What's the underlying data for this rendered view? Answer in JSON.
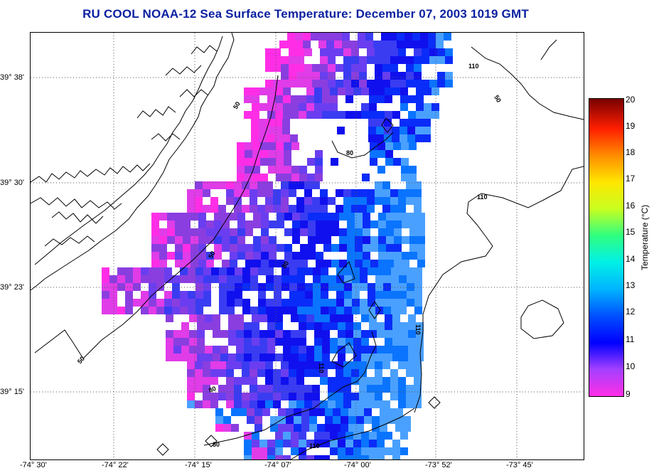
{
  "title": "RU COOL  NOAA-12  Sea Surface Temperature:  December 07, 2003 1019 GMT",
  "latitude_labels": [
    "39° 38'",
    "39° 30'",
    "39° 23'",
    "39° 15'"
  ],
  "longitude_labels": [
    "-74° 30'",
    "-74° 22'",
    "-74° 15'",
    "-74° 07'",
    "-74° 00'",
    "-73° 52'",
    "-73° 45'"
  ],
  "colorbar": {
    "label": "Temperature (°C)",
    "ticks": [
      "20",
      "19",
      "18",
      "17",
      "16",
      "15",
      "14",
      "13",
      "12",
      "11",
      "10",
      "9"
    ]
  },
  "contour_labels": [
    "50",
    "80",
    "110",
    "110",
    "50",
    "50",
    "80",
    "110",
    "110",
    "50",
    "80",
    "80",
    "110"
  ],
  "colors": {
    "title": "#0a1fa0",
    "warm": "#ff2ee6",
    "mid": "#8a3ee0",
    "cool": "#1010ee",
    "cold": "#0a74ff"
  }
}
